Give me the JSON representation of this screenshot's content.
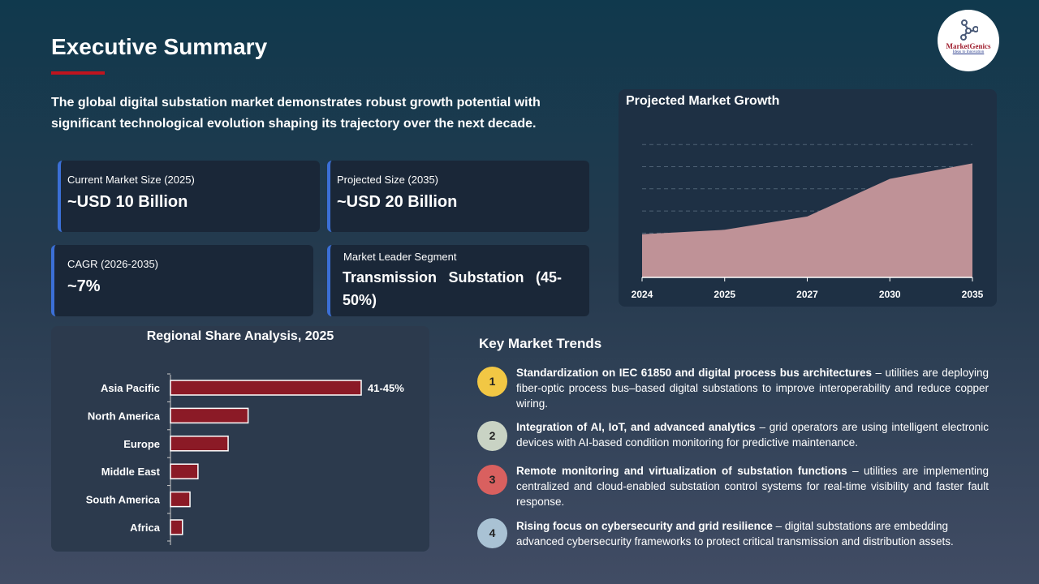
{
  "header": {
    "title": "Executive Summary",
    "intro": "The global digital substation market demonstrates robust growth potential with significant technological evolution shaping its trajectory over the next decade.",
    "logo_text": "MarketGenics",
    "logo_tagline": "Ideas to Innovation"
  },
  "cards": [
    {
      "label": "Current Market Size (2025)",
      "value": "~USD 10 Billion"
    },
    {
      "label": "Projected Size (2035)",
      "value": "~USD 20 Billion"
    },
    {
      "label": "CAGR (2026-2035)",
      "value": "~7%"
    },
    {
      "label": "Market Leader Segment",
      "value": "Transmission Substation (45-50%)"
    }
  ],
  "chart_data": [
    {
      "type": "area",
      "title": "Projected Market Growth",
      "categories": [
        "2024",
        "2025",
        "2027",
        "2030",
        "2035"
      ],
      "values": [
        1.95,
        2.15,
        2.75,
        4.45,
        5.15
      ],
      "ylim": [
        0,
        6
      ],
      "grid": true,
      "color": "#bf9297"
    },
    {
      "type": "bar",
      "orientation": "horizontal",
      "title": "Regional Share Analysis, 2025",
      "categories": [
        "Asia Pacific",
        "North America",
        "Europe",
        "Middle East",
        "South America",
        "Africa"
      ],
      "values": [
        43,
        17.5,
        13,
        6.2,
        4.4,
        2.7
      ],
      "data_labels": [
        "41-45%",
        "",
        "",
        "",
        "",
        ""
      ],
      "color": "#8b1a26"
    }
  ],
  "trends": {
    "title": "Key Market Trends",
    "items": [
      {
        "num": "1",
        "color": "#f2c744",
        "bold": "Standardization on IEC 61850 and digital process bus architectures",
        "text": " – utilities are deploying fiber-optic process bus–based digital substations to improve interoperability and reduce copper wiring."
      },
      {
        "num": "2",
        "color": "#c9d3c4",
        "bold": "Integration of AI, IoT, and advanced analytics",
        "text": " – grid operators are using intelligent electronic devices with AI-based condition monitoring for predictive maintenance."
      },
      {
        "num": "3",
        "color": "#d9605f",
        "bold": "Remote monitoring and virtualization of substation functions",
        "text": " – utilities are implementing centralized and cloud-enabled substation control systems for real-time visibility and faster fault response."
      },
      {
        "num": "4",
        "color": "#a9c2d4",
        "bold": "Rising focus on cybersecurity and grid resilience",
        "text": " – digital substations are embedding advanced cybersecurity frameworks to protect critical transmission and distribution assets."
      }
    ]
  }
}
